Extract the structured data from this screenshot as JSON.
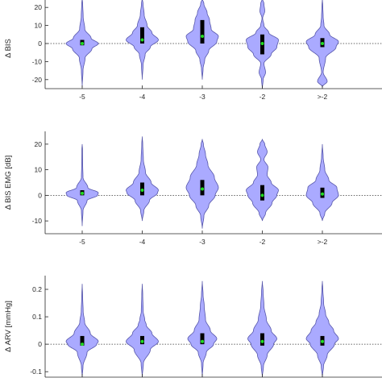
{
  "chart_data": [
    {
      "type": "violin",
      "ylabel": "Δ BIS",
      "ylim": [
        -25,
        25
      ],
      "yticks": [
        -20,
        -10,
        0,
        10,
        20
      ],
      "categories": [
        "-5",
        "-4",
        "-3",
        "-2",
        ">-2"
      ],
      "reference_line": 0,
      "fill_color": "#aaaaff",
      "edge_color": "#5555aa",
      "median_color": "#22dd22",
      "violins": [
        {
          "category": "-5",
          "q1": -1,
          "median": 0,
          "q3": 2,
          "profile": [
            [
              -24,
              0
            ],
            [
              -15,
              0.05
            ],
            [
              -8,
              0.18
            ],
            [
              -3,
              0.6
            ],
            [
              0,
              1.0
            ],
            [
              3,
              0.55
            ],
            [
              8,
              0.16
            ],
            [
              15,
              0.06
            ],
            [
              22,
              0.03
            ],
            [
              25,
              0
            ]
          ]
        },
        {
          "category": "-4",
          "q1": 0,
          "median": 2,
          "q3": 9,
          "profile": [
            [
              -20,
              0
            ],
            [
              -12,
              0.05
            ],
            [
              -6,
              0.18
            ],
            [
              -2,
              0.5
            ],
            [
              2,
              1.0
            ],
            [
              6,
              0.6
            ],
            [
              10,
              0.3
            ],
            [
              16,
              0.12
            ],
            [
              22,
              0.05
            ],
            [
              25,
              0
            ]
          ]
        },
        {
          "category": "-3",
          "q1": 0,
          "median": 4,
          "q3": 13,
          "profile": [
            [
              -20,
              0
            ],
            [
              -14,
              0.05
            ],
            [
              -9,
              0.15
            ],
            [
              -4,
              0.4
            ],
            [
              1,
              0.9
            ],
            [
              4,
              1.0
            ],
            [
              8,
              0.55
            ],
            [
              13,
              0.45
            ],
            [
              17,
              0.3
            ],
            [
              22,
              0.1
            ],
            [
              25,
              0
            ]
          ]
        },
        {
          "category": "-2",
          "q1": -6,
          "median": 0,
          "q3": 5,
          "profile": [
            [
              -25,
              0
            ],
            [
              -20,
              0.05
            ],
            [
              -16,
              0.2
            ],
            [
              -11,
              0.1
            ],
            [
              -6,
              0.55
            ],
            [
              -2,
              0.9
            ],
            [
              2,
              1.0
            ],
            [
              6,
              0.4
            ],
            [
              10,
              0.1
            ],
            [
              14,
              0.02
            ],
            [
              18,
              0.15
            ],
            [
              22,
              0.1
            ],
            [
              25,
              0
            ]
          ]
        },
        {
          "category": ">-2",
          "q1": -2,
          "median": 0,
          "q3": 3,
          "profile": [
            [
              -24,
              0
            ],
            [
              -21,
              0.3
            ],
            [
              -16,
              0.05
            ],
            [
              -8,
              0.2
            ],
            [
              -2,
              0.85
            ],
            [
              1,
              1.0
            ],
            [
              5,
              0.45
            ],
            [
              10,
              0.1
            ],
            [
              15,
              0.05
            ],
            [
              20,
              0.03
            ],
            [
              25,
              0
            ]
          ]
        }
      ]
    },
    {
      "type": "violin",
      "ylabel": "Δ BIS EMG [dB]",
      "ylim": [
        -15,
        25
      ],
      "yticks": [
        -10,
        0,
        10,
        20
      ],
      "categories": [
        "-5",
        "-4",
        "-3",
        "-2",
        ">-2"
      ],
      "reference_line": 0,
      "fill_color": "#aaaaff",
      "edge_color": "#5555aa",
      "median_color": "#22dd22",
      "violins": [
        {
          "category": "-5",
          "q1": 0,
          "median": 0.8,
          "q3": 2,
          "profile": [
            [
              -12,
              0
            ],
            [
              -6,
              0.05
            ],
            [
              -2,
              0.3
            ],
            [
              0,
              0.95
            ],
            [
              1,
              1.0
            ],
            [
              3,
              0.35
            ],
            [
              7,
              0.05
            ],
            [
              12,
              0.03
            ],
            [
              18,
              0.02
            ],
            [
              20,
              0
            ]
          ]
        },
        {
          "category": "-4",
          "q1": 0,
          "median": 2,
          "q3": 5,
          "profile": [
            [
              -10,
              0
            ],
            [
              -6,
              0.1
            ],
            [
              -2,
              0.45
            ],
            [
              1,
              0.95
            ],
            [
              2,
              1.0
            ],
            [
              5,
              0.55
            ],
            [
              9,
              0.2
            ],
            [
              14,
              0.07
            ],
            [
              20,
              0.03
            ],
            [
              23,
              0
            ]
          ]
        },
        {
          "category": "-3",
          "q1": 0,
          "median": 2.5,
          "q3": 6,
          "profile": [
            [
              -13,
              0
            ],
            [
              -8,
              0.1
            ],
            [
              -4,
              0.4
            ],
            [
              0,
              0.8
            ],
            [
              3,
              1.0
            ],
            [
              7,
              0.75
            ],
            [
              12,
              0.35
            ],
            [
              16,
              0.2
            ],
            [
              20,
              0.07
            ],
            [
              22,
              0
            ]
          ]
        },
        {
          "category": "-2",
          "q1": -2,
          "median": 0,
          "q3": 4,
          "profile": [
            [
              -10,
              0
            ],
            [
              -7,
              0.2
            ],
            [
              -3,
              0.6
            ],
            [
              0,
              0.9
            ],
            [
              2,
              1.0
            ],
            [
              5,
              0.55
            ],
            [
              8,
              0.3
            ],
            [
              11,
              0.35
            ],
            [
              14,
              0.1
            ],
            [
              17,
              0.3
            ],
            [
              20,
              0.15
            ],
            [
              22,
              0
            ]
          ]
        },
        {
          "category": ">-2",
          "q1": -1,
          "median": 0.5,
          "q3": 3,
          "profile": [
            [
              -10,
              0
            ],
            [
              -7,
              0.15
            ],
            [
              -3,
              0.6
            ],
            [
              0,
              1.0
            ],
            [
              3,
              0.9
            ],
            [
              6,
              0.4
            ],
            [
              10,
              0.15
            ],
            [
              15,
              0.05
            ],
            [
              20,
              0
            ]
          ]
        }
      ]
    },
    {
      "type": "violin",
      "ylabel": "Δ ARV [mmHg]",
      "ylim": [
        -0.12,
        0.25
      ],
      "yticks": [
        -0.1,
        0,
        0.1,
        0.2
      ],
      "categories": [
        "-5",
        "-4",
        "-3",
        "-2",
        ">-2"
      ],
      "reference_line": 0,
      "fill_color": "#aaaaff",
      "edge_color": "#5555aa",
      "median_color": "#22dd22",
      "violins": [
        {
          "category": "-5",
          "q1": -0.005,
          "median": 0.0,
          "q3": 0.03,
          "profile": [
            [
              -0.12,
              0
            ],
            [
              -0.08,
              0.05
            ],
            [
              -0.03,
              0.3
            ],
            [
              0.0,
              0.9
            ],
            [
              0.01,
              1.0
            ],
            [
              0.04,
              0.5
            ],
            [
              0.08,
              0.15
            ],
            [
              0.12,
              0.06
            ],
            [
              0.17,
              0.03
            ],
            [
              0.22,
              0
            ]
          ]
        },
        {
          "category": "-4",
          "q1": 0.0,
          "median": 0.01,
          "q3": 0.03,
          "profile": [
            [
              -0.12,
              0
            ],
            [
              -0.07,
              0.07
            ],
            [
              -0.02,
              0.5
            ],
            [
              0.01,
              1.0
            ],
            [
              0.04,
              0.6
            ],
            [
              0.07,
              0.25
            ],
            [
              0.09,
              0.15
            ],
            [
              0.12,
              0.06
            ],
            [
              0.18,
              0.03
            ],
            [
              0.22,
              0
            ]
          ]
        },
        {
          "category": "-3",
          "q1": 0.0,
          "median": 0.01,
          "q3": 0.04,
          "profile": [
            [
              -0.12,
              0
            ],
            [
              -0.07,
              0.05
            ],
            [
              -0.03,
              0.25
            ],
            [
              0.0,
              0.7
            ],
            [
              0.02,
              0.9
            ],
            [
              0.05,
              0.5
            ],
            [
              0.09,
              0.2
            ],
            [
              0.14,
              0.12
            ],
            [
              0.18,
              0.05
            ],
            [
              0.23,
              0
            ]
          ]
        },
        {
          "category": "-2",
          "q1": -0.005,
          "median": 0.01,
          "q3": 0.04,
          "profile": [
            [
              -0.12,
              0
            ],
            [
              -0.08,
              0.07
            ],
            [
              -0.04,
              0.3
            ],
            [
              0.0,
              0.7
            ],
            [
              0.02,
              0.9
            ],
            [
              0.05,
              0.55
            ],
            [
              0.09,
              0.25
            ],
            [
              0.14,
              0.1
            ],
            [
              0.19,
              0.05
            ],
            [
              0.23,
              0
            ]
          ]
        },
        {
          "category": ">-2",
          "q1": -0.005,
          "median": 0.01,
          "q3": 0.03,
          "profile": [
            [
              -0.12,
              0
            ],
            [
              -0.08,
              0.07
            ],
            [
              -0.04,
              0.3
            ],
            [
              0.0,
              0.75
            ],
            [
              0.02,
              1.0
            ],
            [
              0.05,
              0.7
            ],
            [
              0.08,
              0.4
            ],
            [
              0.11,
              0.2
            ],
            [
              0.15,
              0.08
            ],
            [
              0.2,
              0.03
            ],
            [
              0.23,
              0
            ]
          ]
        }
      ]
    }
  ]
}
